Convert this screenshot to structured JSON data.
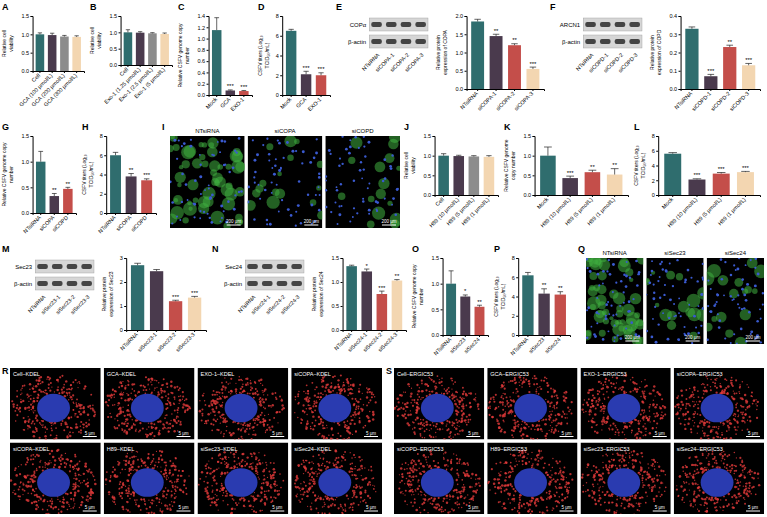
{
  "chart_data": [
    {
      "panel": "A",
      "type": "bar",
      "y_label": "Relative cell viability",
      "categories": [
        "Cell",
        "GCA (100 μmol/L)",
        "GCA (200 μmol/L)",
        "GCA (300 μmol/L)"
      ],
      "values": [
        1.0,
        0.98,
        0.94,
        0.93
      ],
      "errors": [
        0.04,
        0.05,
        0.03,
        0.03
      ],
      "colors": [
        "#2f6d6e",
        "#4a3a4d",
        "#8c8c8c",
        "#f3d6b1"
      ],
      "ylim": [
        0,
        1.5
      ],
      "yticks": [
        {
          "value": 0,
          "label": "0.0"
        },
        0.5,
        {
          "value": 1,
          "label": "1.0"
        },
        1.5
      ]
    },
    {
      "panel": "B",
      "type": "bar",
      "y_label": "Relative cell viability",
      "categories": [
        "Cell",
        "Exo-1 (1.25 μmol/L)",
        "Exo-1 (2.5 μmol/L)",
        "Exo-1 (5 μmol/L)"
      ],
      "values": [
        1.0,
        0.99,
        0.97,
        0.95
      ],
      "errors": [
        0.08,
        0.03,
        0.02,
        0.03
      ],
      "colors": [
        "#2f6d6e",
        "#4a3a4d",
        "#8c8c8c",
        "#f3d6b1"
      ],
      "ylim": [
        0,
        1.5
      ],
      "yticks": [
        {
          "value": 0,
          "label": "0.0"
        },
        0.5,
        {
          "value": 1,
          "label": "1.0"
        },
        1.5
      ]
    },
    {
      "panel": "C",
      "type": "bar",
      "y_label": "Relative CSFV genome copy number",
      "categories": [
        "Mock",
        "GCA",
        "EXO-1"
      ],
      "values": [
        1.15,
        0.08,
        0.07
      ],
      "errors": [
        0.22,
        0.01,
        0.01
      ],
      "colors": [
        "#2f6d6e",
        "#4a3a4d",
        "#c44e4a"
      ],
      "significance": [
        null,
        "***",
        "***"
      ],
      "ylim": [
        0,
        1.4
      ],
      "yticks": [
        {
          "value": 0,
          "label": "0.0"
        },
        0.2,
        0.4,
        0.6,
        0.8,
        {
          "value": 1,
          "label": "1.0"
        },
        1.2,
        1.4
      ]
    },
    {
      "panel": "D",
      "type": "bar",
      "y_label": "CSFV titers (Log₁₀ TCID₅₀/mL)",
      "categories": [
        "Mock",
        "GCA",
        "EXO-1"
      ],
      "values": [
        6.5,
        2.1,
        2.0
      ],
      "errors": [
        0.15,
        0.3,
        0.25
      ],
      "colors": [
        "#2f6d6e",
        "#4a3a4d",
        "#c44e4a"
      ],
      "significance": [
        null,
        "***",
        "***"
      ],
      "ylim": [
        0,
        8
      ],
      "yticks": [
        0,
        2,
        4,
        6,
        8
      ]
    },
    {
      "type": "bar",
      "y_label": "Relative protein expression of COPA",
      "categories": [
        "NTsiRNA",
        "siCOPA-1",
        "siCOPA-2",
        "siCOPA-3"
      ],
      "values": [
        1.85,
        1.45,
        1.2,
        0.55
      ],
      "errors": [
        0.06,
        0.05,
        0.04,
        0.05
      ],
      "colors": [
        "#2f6d6e",
        "#4a3a4d",
        "#c44e4a",
        "#f3d6b1"
      ],
      "significance": [
        null,
        "**",
        "**",
        "***"
      ],
      "ylim": [
        0,
        2
      ],
      "yticks": [
        {
          "value": 0,
          "label": "0.0"
        },
        0.5,
        {
          "value": 1,
          "label": "1.0"
        },
        1.5,
        {
          "value": 2,
          "label": "2.0"
        }
      ]
    },
    {
      "type": "bar",
      "y_label": "Relative protein expression of COPD",
      "categories": [
        "NTsiRNA",
        "siCOPD-1",
        "siCOPD-2",
        "siCOPD-3"
      ],
      "values": [
        0.33,
        0.07,
        0.23,
        0.13
      ],
      "errors": [
        0.01,
        0.01,
        0.01,
        0.01
      ],
      "colors": [
        "#2f6d6e",
        "#4a3a4d",
        "#c44e4a",
        "#f3d6b1"
      ],
      "significance": [
        null,
        "***",
        "**",
        "***"
      ],
      "ylim": [
        0,
        0.4
      ],
      "yticks": [
        {
          "value": 0,
          "label": "0.0"
        },
        0.1,
        0.2,
        0.3,
        0.4
      ]
    },
    {
      "panel": "G",
      "type": "bar",
      "y_label": "Relative CSFV genome copy number",
      "categories": [
        "NTsiRNA",
        "siCOPA",
        "siCOPD"
      ],
      "values": [
        1.0,
        0.33,
        0.47
      ],
      "errors": [
        0.2,
        0.05,
        0.03
      ],
      "colors": [
        "#2f6d6e",
        "#4a3a4d",
        "#c44e4a"
      ],
      "significance": [
        null,
        "**",
        "**"
      ],
      "ylim": [
        0,
        1.5
      ],
      "yticks": [
        {
          "value": 0,
          "label": "0.0"
        },
        0.5,
        {
          "value": 1,
          "label": "1.0"
        },
        1.5
      ]
    },
    {
      "panel": "H",
      "type": "bar",
      "y_label": "CSFV titers (Log₁₀ TCID₅₀/mL)",
      "categories": [
        "NTsiRNA",
        "siCOPA",
        "siCOPD"
      ],
      "values": [
        6.0,
        3.8,
        3.4
      ],
      "errors": [
        0.3,
        0.3,
        0.15
      ],
      "colors": [
        "#2f6d6e",
        "#4a3a4d",
        "#c44e4a"
      ],
      "significance": [
        null,
        "**",
        "***"
      ],
      "ylim": [
        0,
        8
      ],
      "yticks": [
        0,
        2,
        4,
        6,
        8
      ]
    },
    {
      "panel": "J",
      "type": "bar",
      "y_label": "Relative cell viability",
      "categories": [
        "Cell",
        "H89 (10 μmol/L)",
        "H89 (5 μmol/L)",
        "H89 (1 μmol/L)"
      ],
      "values": [
        1.0,
        0.99,
        0.98,
        0.97
      ],
      "errors": [
        0.05,
        0.02,
        0.02,
        0.03
      ],
      "colors": [
        "#2f6d6e",
        "#4a3a4d",
        "#8c8c8c",
        "#f3d6b1"
      ],
      "ylim": [
        0,
        1.5
      ],
      "yticks": [
        {
          "value": 0,
          "label": "0.0"
        },
        0.5,
        {
          "value": 1,
          "label": "1.0"
        },
        1.5
      ]
    },
    {
      "panel": "K",
      "type": "bar",
      "y_label": "Relative CSFV genome copy number",
      "categories": [
        "Mock",
        "H89 (10 μmol/L)",
        "H89 (5 μmol/L)",
        "H89 (1 μmol/L)"
      ],
      "values": [
        1.0,
        0.43,
        0.58,
        0.52
      ],
      "errors": [
        0.22,
        0.05,
        0.05,
        0.15
      ],
      "colors": [
        "#2f6d6e",
        "#4a3a4d",
        "#c44e4a",
        "#f3d6b1"
      ],
      "significance": [
        null,
        "***",
        "**",
        "**"
      ],
      "ylim": [
        0,
        1.5
      ],
      "yticks": [
        {
          "value": 0,
          "label": "0.0"
        },
        0.5,
        {
          "value": 1,
          "label": "1.0"
        },
        1.5
      ]
    },
    {
      "panel": "L",
      "type": "bar",
      "y_label": "CSFV titers (Log₁₀ TCID₅₀/mL)",
      "categories": [
        "Mock",
        "H89 (10 μmol/L)",
        "H89 (5 μmol/L)",
        "H89 (1 μmol/L)"
      ],
      "values": [
        5.6,
        2.1,
        2.9,
        3.1
      ],
      "errors": [
        0.15,
        0.1,
        0.15,
        0.1
      ],
      "colors": [
        "#2f6d6e",
        "#4a3a4d",
        "#c44e4a",
        "#f3d6b1"
      ],
      "significance": [
        null,
        "***",
        "***",
        "***"
      ],
      "ylim": [
        0,
        8
      ],
      "yticks": [
        0,
        2,
        4,
        6,
        8
      ]
    },
    {
      "type": "bar",
      "y_label": "Relative protein expression of Sec23",
      "categories": [
        "NTsiRNA",
        "siSec23-1",
        "siSec23-2",
        "siSec23-3"
      ],
      "values": [
        2.7,
        2.45,
        1.2,
        1.35
      ],
      "errors": [
        0.08,
        0.07,
        0.04,
        0.05
      ],
      "colors": [
        "#2f6d6e",
        "#4a3a4d",
        "#c44e4a",
        "#f3d6b1"
      ],
      "significance": [
        null,
        null,
        "***",
        "***"
      ],
      "ylim": [
        0,
        3
      ],
      "yticks": [
        0,
        1,
        2,
        3
      ]
    },
    {
      "type": "bar",
      "y_label": "Relative protein expression of Sec24",
      "categories": [
        "NTsiRNA",
        "siSec24-1",
        "siSec24-2",
        "siSec24-3"
      ],
      "values": [
        1.33,
        1.22,
        0.75,
        1.03
      ],
      "errors": [
        0.02,
        0.05,
        0.06,
        0.02
      ],
      "colors": [
        "#2f6d6e",
        "#4a3a4d",
        "#c44e4a",
        "#f3d6b1"
      ],
      "significance": [
        null,
        "*",
        "***",
        "**"
      ],
      "ylim": [
        0,
        1.5
      ],
      "yticks": [
        {
          "value": 0,
          "label": "0.0"
        },
        0.5,
        {
          "value": 1,
          "label": "1.0"
        },
        1.5
      ]
    },
    {
      "panel": "O",
      "type": "bar",
      "y_label": "Relative CSFV genome copy number",
      "categories": [
        "NTsiRNA",
        "siSec23",
        "siSec24"
      ],
      "values": [
        1.0,
        0.75,
        0.55
      ],
      "errors": [
        0.25,
        0.03,
        0.03
      ],
      "colors": [
        "#2f6d6e",
        "#4a3a4d",
        "#c44e4a"
      ],
      "significance": [
        null,
        "*",
        "**"
      ],
      "ylim": [
        0,
        1.5
      ],
      "yticks": [
        {
          "value": 0,
          "label": "0.0"
        },
        0.5,
        {
          "value": 1,
          "label": "1.0"
        },
        1.5
      ]
    },
    {
      "panel": "P",
      "type": "bar",
      "y_label": "CSFV titers (Log₁₀ TCID₅₀/mL)",
      "categories": [
        "NTsiRNA",
        "siSec23",
        "siSec24"
      ],
      "values": [
        6.2,
        4.3,
        4.2
      ],
      "errors": [
        0.3,
        0.5,
        0.3
      ],
      "colors": [
        "#2f6d6e",
        "#4a3a4d",
        "#c44e4a"
      ],
      "significance": [
        null,
        "**",
        "**"
      ],
      "ylim": [
        0,
        8
      ],
      "yticks": [
        0,
        2,
        4,
        6,
        8
      ]
    }
  ],
  "blots": [
    {
      "panel": "E",
      "rows": [
        "COPα",
        "β-actin"
      ],
      "lanes": [
        "NTsiRNA",
        "siCOPA-1",
        "siCOPA-2",
        "siCOPA-3"
      ]
    },
    {
      "panel": "F",
      "rows": [
        "ARCN1",
        "β-actin"
      ],
      "lanes": [
        "NTsiRNA",
        "siCOPD-1",
        "siCOPD-2",
        "siCOPD-3"
      ]
    },
    {
      "panel": "M",
      "rows": [
        "Sec23",
        "β-actin"
      ],
      "lanes": [
        "NTsiRNA",
        "siSec23-1",
        "siSec23-2",
        "siSec23-3"
      ]
    },
    {
      "panel": "N",
      "rows": [
        "Sec24",
        "β-actin"
      ],
      "lanes": [
        "NTsiRNA",
        "siSec24-1",
        "siSec24-2",
        "siSec24-3"
      ]
    }
  ],
  "micrographs": [
    {
      "panel": "I",
      "labels": [
        "NTsiRNA",
        "siCOPA",
        "siCOPD"
      ],
      "scale_bar": "200 μm"
    },
    {
      "panel": "Q",
      "labels": [
        "NTsiRNA",
        "siSec23",
        "siSec24"
      ],
      "scale_bar": "200 μm"
    },
    {
      "panel": "R",
      "labels": [
        "Cell–KDEL",
        "GCA–KDEL",
        "EXO-1–KDEL",
        "siCOPA–KDEL",
        "siCOPA–KDEL",
        "H89–KDEL",
        "siSec23–KDEL",
        "siSec24–KDEL"
      ],
      "scale_bar": "5 μm"
    },
    {
      "panel": "S",
      "labels": [
        "Cell–ERGIC53",
        "GCA–ERGIC53",
        "EXO-1–ERGIC53",
        "siCOPA–ERGIC53",
        "siCOPD–ERGIC53",
        "H89–ERGIC53",
        "siSec23–ERGIC53",
        "siSec24–ERGIC53"
      ],
      "scale_bar": "5 μm"
    }
  ]
}
